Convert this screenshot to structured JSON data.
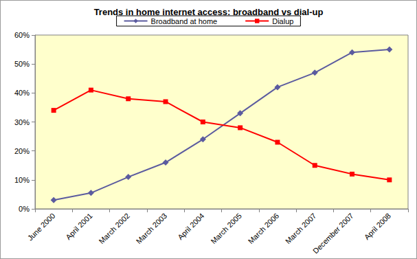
{
  "chart_data": {
    "type": "line",
    "title": "Trends in home internet access: broadband vs dial-up",
    "categories": [
      "June 2000",
      "April 2001",
      "March 2002",
      "March 2003",
      "April 2004",
      "March 2005",
      "March 2006",
      "March 2007",
      "December 2007",
      "April 2008"
    ],
    "series": [
      {
        "name": "Broadband at home",
        "color": "#5b5b9f",
        "marker": "diamond",
        "line_style": "solid",
        "values": [
          3,
          5.5,
          11,
          16,
          24,
          33,
          42,
          47,
          54,
          55
        ]
      },
      {
        "name": "Dialup",
        "color": "#ff0000",
        "marker": "square",
        "line_style": "solid",
        "values": [
          34,
          41,
          38,
          37,
          30,
          28,
          23,
          15,
          12,
          10
        ]
      }
    ],
    "ylim": [
      0,
      60
    ],
    "yticks": [
      {
        "value": 0,
        "label": "0%"
      },
      {
        "value": 10,
        "label": "10%"
      },
      {
        "value": 20,
        "label": "20%"
      },
      {
        "value": 30,
        "label": "30%"
      },
      {
        "value": 40,
        "label": "40%"
      },
      {
        "value": 50,
        "label": "50%"
      },
      {
        "value": 60,
        "label": "60%"
      }
    ],
    "grid": false,
    "legend": "top"
  }
}
